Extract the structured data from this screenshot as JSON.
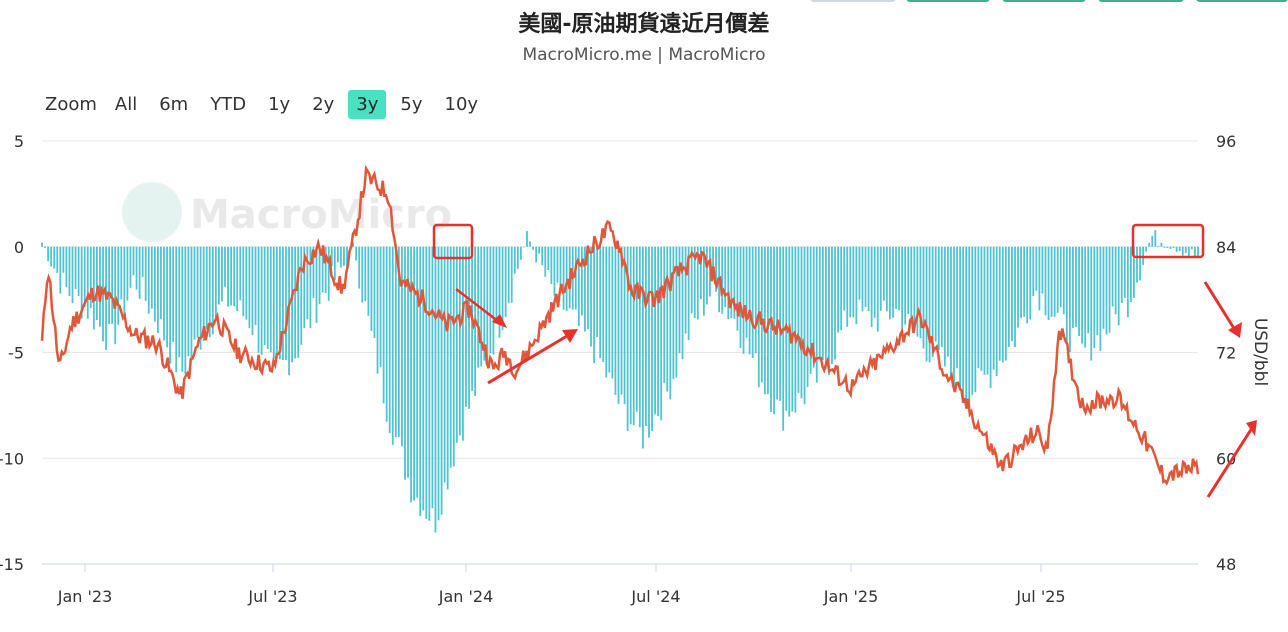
{
  "header": {
    "title": "美國-原油期貨遠近月價差",
    "subtitle": "MacroMicro.me | MacroMicro",
    "watermark": "MacroMicro"
  },
  "range_selector": {
    "label": "Zoom",
    "buttons": [
      "All",
      "6m",
      "YTD",
      "1y",
      "2y",
      "3y",
      "5y",
      "10y"
    ],
    "active": "3y"
  },
  "colors": {
    "bars": "#4fc3d0",
    "line": "#e0573a",
    "active_button": "#48e1c1",
    "annotation": "#e8312e",
    "top_buttons": "#3fae8c"
  },
  "chart_data": {
    "type": "bar+line",
    "title": "美國-原油期貨遠近月價差",
    "x_tick_labels": [
      "Jan '23",
      "Jul '23",
      "Jan '24",
      "Jul '24",
      "Jan '25",
      "Jul '25"
    ],
    "x_range": [
      "2022-12",
      "2025-12"
    ],
    "left_axis": {
      "ticks": [
        "5",
        "0",
        "-5",
        "-10",
        "-15"
      ],
      "ylim": [
        -15,
        5
      ]
    },
    "right_axis": {
      "title": "USD/bbl",
      "ticks": [
        "96",
        "84",
        "72",
        "60",
        "48"
      ],
      "ylim": [
        48,
        96
      ]
    },
    "grid": true,
    "series": [
      {
        "type": "bar",
        "axis": "left",
        "t": [
          0,
          0.02,
          0.04,
          0.06,
          0.08,
          0.1,
          0.12,
          0.14,
          0.16,
          0.18,
          0.2,
          0.22,
          0.24,
          0.26,
          0.27,
          0.28,
          0.3,
          0.32,
          0.34,
          0.36,
          0.38,
          0.4,
          0.42,
          0.44,
          0.46,
          0.48,
          0.5,
          0.52,
          0.54,
          0.56,
          0.58,
          0.6,
          0.62,
          0.64,
          0.66,
          0.68,
          0.7,
          0.72,
          0.74,
          0.76,
          0.78,
          0.8,
          0.82,
          0.84,
          0.86,
          0.88,
          0.9,
          0.92,
          0.94,
          0.96,
          0.98,
          1.0
        ],
        "values": [
          0.2,
          -2.0,
          -3.0,
          -4.5,
          -1.5,
          -3.5,
          -6.0,
          -4.0,
          -2.5,
          -3.5,
          -6.0,
          -5.0,
          -2.5,
          -1.0,
          0.1,
          -3.0,
          -8.0,
          -11.5,
          -13.0,
          -9.0,
          -6.0,
          -3.0,
          0.5,
          -2.0,
          -3.5,
          -5.0,
          -7.5,
          -9.0,
          -7.0,
          -4.0,
          -2.0,
          -3.5,
          -6.0,
          -8.0,
          -7.0,
          -5.5,
          -3.0,
          -3.5,
          -3.0,
          -4.5,
          -5.5,
          -7.0,
          -6.0,
          -4.5,
          -2.0,
          -3.5,
          -5.0,
          -4.0,
          -2.5,
          0.5,
          0.0,
          -0.5
        ]
      },
      {
        "type": "line",
        "axis": "right",
        "t": [
          0,
          0.005,
          0.015,
          0.025,
          0.045,
          0.06,
          0.08,
          0.1,
          0.12,
          0.135,
          0.15,
          0.17,
          0.2,
          0.225,
          0.24,
          0.26,
          0.27,
          0.28,
          0.3,
          0.31,
          0.33,
          0.35,
          0.37,
          0.39,
          0.4,
          0.41,
          0.42,
          0.45,
          0.47,
          0.49,
          0.5,
          0.51,
          0.53,
          0.55,
          0.57,
          0.6,
          0.63,
          0.65,
          0.7,
          0.73,
          0.76,
          0.78,
          0.8,
          0.83,
          0.86,
          0.87,
          0.88,
          0.9,
          0.93,
          0.95,
          0.97,
          1.0
        ],
        "values": [
          73,
          82,
          70,
          75,
          79,
          78,
          74,
          73,
          67,
          73,
          76,
          72,
          70,
          82,
          84,
          79,
          85,
          92,
          90,
          80,
          78,
          75,
          77,
          70,
          72,
          70,
          72,
          79,
          83,
          86,
          84,
          79,
          78,
          81,
          83,
          77,
          75,
          74,
          68,
          72,
          76,
          70,
          66,
          59,
          63,
          61,
          75,
          66,
          67,
          63,
          58,
          59
        ]
      }
    ]
  }
}
